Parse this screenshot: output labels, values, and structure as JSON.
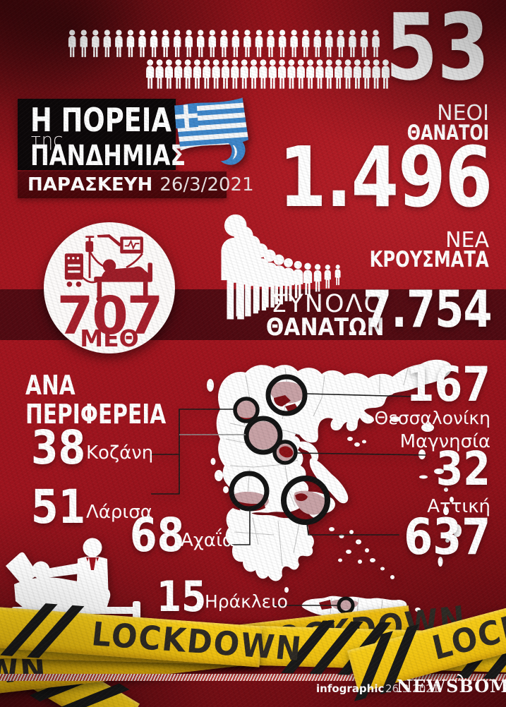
{
  "header": {
    "deaths_value": "53",
    "deaths_label1": "ΝΕΟΙ",
    "deaths_label2": "ΘΑΝΑΤΟΙ"
  },
  "title": {
    "line1": "Η ΠΟΡΕΙΑ",
    "line2": "της",
    "line3": "ΠΑΝΔΗΜΙΑΣ",
    "day": "ΠΑΡΑΣΚΕΥΗ",
    "date": "26/3/2021"
  },
  "cases": {
    "value": "1.496",
    "label1": "ΝΕΑ",
    "label2": "ΚΡΟΥΣΜΑΤΑ"
  },
  "icu": {
    "value": "707",
    "label": "ΜΕΘ"
  },
  "total_deaths": {
    "value": "7.754",
    "label1": "ΣΥΝΟΛΟ",
    "label2": "ΘΑΝΑΤΩΝ"
  },
  "regions": {
    "heading_line1": "ΑΝΑ",
    "heading_line2": "ΠΕΡΙΦΕΡΕΙΑ",
    "left": [
      {
        "value": "38",
        "name": "Κοζάνη"
      },
      {
        "value": "51",
        "name": "Λάρισα"
      },
      {
        "value": "68",
        "name": "Αχαΐα"
      },
      {
        "value": "15",
        "name": "Ηράκλειο"
      }
    ],
    "right": [
      {
        "value": "167",
        "name": "Θεσσαλονίκη"
      },
      {
        "value": "32",
        "name": "Μαγνησία"
      },
      {
        "value": "637",
        "name": "Αττική"
      }
    ]
  },
  "lockdown": {
    "tape_text": "LOCKDOWN"
  },
  "footer": {
    "credit": "infographic",
    "date": "26.3.2021",
    "brand": "NEWSBOMB"
  },
  "pictograms": {
    "row1_count": 27,
    "row2_count": 26,
    "queue_count": 12
  },
  "colors": {
    "background_red": "#9e141e",
    "tape_yellow": "#f2c012",
    "accent_red": "#a6202c",
    "dark_band": "#180308",
    "text_white": "#ffffff"
  },
  "chart_data": {
    "type": "table",
    "title": "Η ΠΟΡΕΙΑ της ΠΑΝΔΗΜΙΑΣ — ΠΑΡΑΣΚΕΥΗ 26/3/2021",
    "metrics": [
      {
        "label": "ΝΕΟΙ ΘΑΝΑΤΟΙ",
        "value": 53
      },
      {
        "label": "ΝΕΑ ΚΡΟΥΣΜΑΤΑ",
        "value": 1496
      },
      {
        "label": "ΜΕΘ",
        "value": 707
      },
      {
        "label": "ΣΥΝΟΛΟ ΘΑΝΑΤΩΝ",
        "value": 7754
      }
    ],
    "regions_deaths_per_region": [
      {
        "name": "Θεσσαλονίκη",
        "value": 167
      },
      {
        "name": "Κοζάνη",
        "value": 38
      },
      {
        "name": "Λάρισα",
        "value": 51
      },
      {
        "name": "Μαγνησία",
        "value": 32
      },
      {
        "name": "Αχαΐα",
        "value": 68
      },
      {
        "name": "Αττική",
        "value": 637
      },
      {
        "name": "Ηράκλειο",
        "value": 15
      }
    ]
  }
}
